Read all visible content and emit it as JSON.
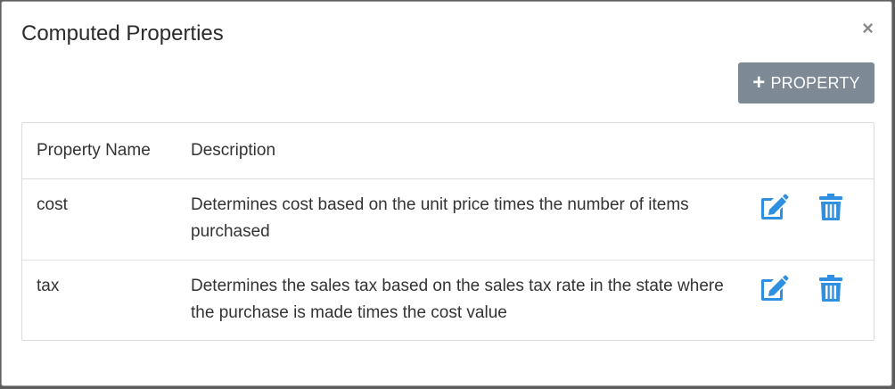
{
  "modal": {
    "title": "Computed Properties",
    "close_glyph": "×",
    "add_button": {
      "icon": "plus-icon",
      "label": "PROPERTY"
    }
  },
  "table": {
    "columns": [
      "Property Name",
      "Description"
    ],
    "rows": [
      {
        "name": "cost",
        "description": "Determines cost based on the unit price times the number of items purchased",
        "actions": [
          "edit-icon",
          "trash-icon"
        ]
      },
      {
        "name": "tax",
        "description": "Determines the sales tax based on the sales tax rate in the state where the purchase is made times the cost value",
        "actions": [
          "edit-icon",
          "trash-icon"
        ]
      }
    ]
  },
  "colors": {
    "accent_icon": "#2f8fe0",
    "button_bg": "#7d8a96",
    "text": "#333333"
  }
}
